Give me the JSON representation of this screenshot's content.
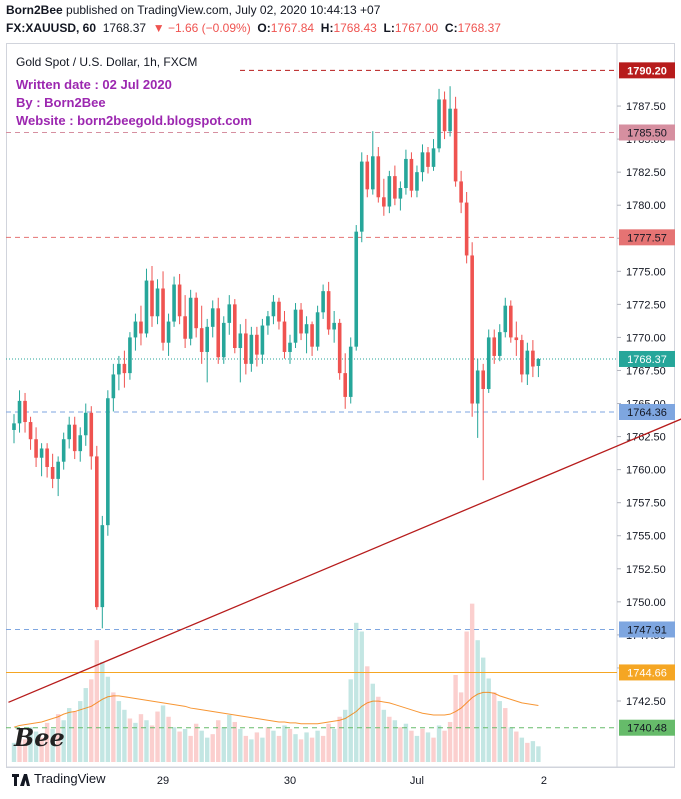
{
  "header": {
    "publisher": "Born2Bee",
    "published_text": "published on TradingView.com, July 02, 2020 10:44:13 +07",
    "symbol": "FX:XAUUSD, 60",
    "last": "1768.37",
    "change": "▼ −1.66 (−0.09%)",
    "o_label": "O:",
    "o_val": "1767.84",
    "h_label": "H:",
    "h_val": "1768.43",
    "l_label": "L:",
    "l_val": "1767.00",
    "c_label": "C:",
    "c_val": "1768.37"
  },
  "pane_title": "Gold Spot / U.S. Dollar, 1h, FXCM",
  "notes": {
    "written": "Written date : 02 Jul 2020",
    "by": "By : Born2Bee",
    "website": "Website : born2beegold.blogspot.com"
  },
  "footer": {
    "tradingview": "TradingView",
    "watermark": "Bee"
  },
  "colors": {
    "up": "#26a69a",
    "down": "#ef5350",
    "trendline": "#b71c1c",
    "note": "#9c27b0",
    "ma": "#f57c00"
  },
  "chart_data": {
    "type": "candlestick",
    "title": "Gold Spot / U.S. Dollar, 1h, FXCM",
    "ylim": [
      1738.5,
      1791.5
    ],
    "y_ticks": [
      1742.5,
      1745,
      1747.5,
      1750,
      1752.5,
      1755,
      1757.5,
      1760,
      1762.5,
      1765,
      1767.5,
      1770,
      1772.5,
      1775,
      1777.5,
      1780,
      1782.5,
      1785,
      1787.5
    ],
    "x_labels": [
      {
        "index": 27,
        "label": "29"
      },
      {
        "index": 50,
        "label": "30"
      },
      {
        "index": 73,
        "label": "Jul"
      },
      {
        "index": 96,
        "label": "2"
      }
    ],
    "levels": [
      {
        "value": 1790.2,
        "label": "1790.20",
        "color": "#b71c1c",
        "style": "dashed"
      },
      {
        "value": 1785.5,
        "label": "1785.50",
        "color": "#d68fa0",
        "style": "dashed"
      },
      {
        "value": 1777.57,
        "label": "1777.57",
        "color": "#e57373",
        "style": "dashed"
      },
      {
        "value": 1768.37,
        "label": "1768.37",
        "color": "#26a69a",
        "style": "dotted"
      },
      {
        "value": 1764.36,
        "label": "1764.36",
        "color": "#7ea6e0",
        "style": "dashed"
      },
      {
        "value": 1747.91,
        "label": "1747.91",
        "color": "#7ea6e0",
        "style": "dashed"
      },
      {
        "value": 1744.66,
        "label": "1744.66",
        "color": "#f5a623",
        "style": "solid"
      },
      {
        "value": 1740.48,
        "label": "1740.48",
        "color": "#66bb6a",
        "style": "dashed"
      }
    ],
    "trendline": {
      "from": {
        "index": -1,
        "value": 1742.4
      },
      "to": {
        "index": 123,
        "value": 1764.2
      }
    },
    "candles": [
      [
        1763.0,
        1764.2,
        1762.0,
        1763.5
      ],
      [
        1763.5,
        1766.0,
        1762.8,
        1765.2
      ],
      [
        1765.2,
        1765.8,
        1762.8,
        1763.6
      ],
      [
        1763.6,
        1764.0,
        1761.5,
        1762.3
      ],
      [
        1762.3,
        1763.2,
        1760.2,
        1760.9
      ],
      [
        1760.9,
        1762.0,
        1759.5,
        1761.6
      ],
      [
        1761.6,
        1762.0,
        1759.4,
        1760.2
      ],
      [
        1760.2,
        1761.2,
        1758.6,
        1759.3
      ],
      [
        1759.3,
        1761.0,
        1758.0,
        1760.6
      ],
      [
        1760.6,
        1762.8,
        1760.0,
        1762.3
      ],
      [
        1762.3,
        1764.0,
        1761.6,
        1763.4
      ],
      [
        1763.4,
        1764.0,
        1760.8,
        1761.4
      ],
      [
        1761.4,
        1763.2,
        1760.6,
        1762.6
      ],
      [
        1762.6,
        1765.0,
        1761.8,
        1764.3
      ],
      [
        1764.3,
        1764.8,
        1760.0,
        1761.0
      ],
      [
        1761.0,
        1761.8,
        1749.4,
        1749.6
      ],
      [
        1749.6,
        1756.5,
        1748.0,
        1755.8
      ],
      [
        1755.8,
        1766.0,
        1755.0,
        1765.4
      ],
      [
        1765.4,
        1768.0,
        1764.4,
        1767.2
      ],
      [
        1767.2,
        1768.6,
        1766.0,
        1768.0
      ],
      [
        1768.0,
        1769.0,
        1766.2,
        1767.3
      ],
      [
        1767.3,
        1770.4,
        1766.8,
        1770.0
      ],
      [
        1770.0,
        1771.8,
        1769.0,
        1771.2
      ],
      [
        1771.2,
        1772.4,
        1769.4,
        1770.3
      ],
      [
        1770.3,
        1775.2,
        1770.0,
        1774.3
      ],
      [
        1774.3,
        1775.4,
        1770.8,
        1771.6
      ],
      [
        1771.6,
        1774.4,
        1771.0,
        1773.7
      ],
      [
        1773.7,
        1775.0,
        1769.0,
        1769.6
      ],
      [
        1769.6,
        1771.8,
        1768.6,
        1771.2
      ],
      [
        1771.2,
        1774.6,
        1770.8,
        1774.0
      ],
      [
        1774.0,
        1774.8,
        1771.0,
        1771.6
      ],
      [
        1771.6,
        1773.2,
        1769.2,
        1769.9
      ],
      [
        1769.9,
        1773.6,
        1769.4,
        1773.0
      ],
      [
        1773.0,
        1773.4,
        1770.0,
        1770.7
      ],
      [
        1770.7,
        1772.4,
        1768.0,
        1768.9
      ],
      [
        1768.9,
        1771.4,
        1766.6,
        1770.8
      ],
      [
        1770.8,
        1772.8,
        1770.0,
        1772.2
      ],
      [
        1772.2,
        1773.0,
        1768.0,
        1768.5
      ],
      [
        1768.5,
        1771.6,
        1768.0,
        1771.1
      ],
      [
        1771.1,
        1773.2,
        1770.2,
        1772.5
      ],
      [
        1772.5,
        1772.9,
        1768.8,
        1769.2
      ],
      [
        1769.2,
        1771.0,
        1766.6,
        1770.3
      ],
      [
        1770.3,
        1771.4,
        1767.2,
        1768.0
      ],
      [
        1768.0,
        1770.8,
        1767.4,
        1770.2
      ],
      [
        1770.2,
        1770.8,
        1767.8,
        1768.7
      ],
      [
        1768.7,
        1771.4,
        1768.0,
        1770.9
      ],
      [
        1770.9,
        1772.0,
        1770.2,
        1771.6
      ],
      [
        1771.6,
        1773.2,
        1771.0,
        1772.7
      ],
      [
        1772.7,
        1773.0,
        1770.6,
        1771.2
      ],
      [
        1771.2,
        1772.0,
        1768.4,
        1768.9
      ],
      [
        1768.9,
        1770.2,
        1768.0,
        1769.6
      ],
      [
        1769.6,
        1772.6,
        1769.2,
        1772.1
      ],
      [
        1772.1,
        1772.6,
        1769.8,
        1770.3
      ],
      [
        1770.3,
        1771.6,
        1768.8,
        1771.0
      ],
      [
        1771.0,
        1771.2,
        1768.6,
        1769.3
      ],
      [
        1769.3,
        1772.4,
        1769.0,
        1771.9
      ],
      [
        1771.9,
        1774.0,
        1771.4,
        1773.5
      ],
      [
        1773.5,
        1774.2,
        1770.2,
        1770.6
      ],
      [
        1770.6,
        1772.0,
        1769.6,
        1771.1
      ],
      [
        1771.1,
        1771.4,
        1766.8,
        1767.3
      ],
      [
        1767.3,
        1768.8,
        1764.6,
        1765.5
      ],
      [
        1765.5,
        1770.0,
        1765.0,
        1769.3
      ],
      [
        1769.3,
        1778.5,
        1769.0,
        1778.0
      ],
      [
        1778.0,
        1784.0,
        1777.2,
        1783.3
      ],
      [
        1783.3,
        1783.8,
        1780.6,
        1781.2
      ],
      [
        1781.2,
        1785.6,
        1780.8,
        1783.7
      ],
      [
        1783.7,
        1784.4,
        1780.2,
        1780.6
      ],
      [
        1780.6,
        1782.0,
        1779.2,
        1779.9
      ],
      [
        1779.9,
        1782.6,
        1779.4,
        1782.2
      ],
      [
        1782.2,
        1783.0,
        1780.0,
        1780.5
      ],
      [
        1780.5,
        1781.8,
        1779.6,
        1781.3
      ],
      [
        1781.3,
        1784.2,
        1780.8,
        1783.5
      ],
      [
        1783.5,
        1784.0,
        1780.6,
        1781.1
      ],
      [
        1781.1,
        1783.0,
        1780.6,
        1782.5
      ],
      [
        1782.5,
        1784.6,
        1781.8,
        1784.0
      ],
      [
        1784.0,
        1784.4,
        1782.4,
        1782.9
      ],
      [
        1782.9,
        1785.0,
        1782.6,
        1784.3
      ],
      [
        1784.3,
        1788.8,
        1784.0,
        1788.0
      ],
      [
        1788.0,
        1788.6,
        1785.0,
        1785.6
      ],
      [
        1785.6,
        1789.0,
        1785.2,
        1787.3
      ],
      [
        1787.3,
        1788.2,
        1781.4,
        1781.8
      ],
      [
        1781.8,
        1782.6,
        1779.4,
        1780.2
      ],
      [
        1780.2,
        1781.0,
        1775.6,
        1776.2
      ],
      [
        1776.2,
        1777.2,
        1764.0,
        1765.0
      ],
      [
        1765.0,
        1768.4,
        1762.4,
        1767.5
      ],
      [
        1767.5,
        1768.0,
        1759.2,
        1766.1
      ],
      [
        1766.1,
        1770.6,
        1765.8,
        1770.0
      ],
      [
        1770.0,
        1770.6,
        1768.0,
        1768.6
      ],
      [
        1768.6,
        1771.0,
        1768.2,
        1770.4
      ],
      [
        1770.4,
        1773.0,
        1770.0,
        1772.4
      ],
      [
        1772.4,
        1772.8,
        1769.6,
        1770.0
      ],
      [
        1770.0,
        1771.2,
        1768.6,
        1769.8
      ],
      [
        1769.8,
        1770.2,
        1766.6,
        1767.2
      ],
      [
        1767.2,
        1769.6,
        1766.4,
        1769.0
      ],
      [
        1769.0,
        1769.8,
        1767.0,
        1767.8
      ],
      [
        1767.84,
        1768.43,
        1767.0,
        1768.37
      ]
    ],
    "volume": [
      [
        22,
        "up"
      ],
      [
        30,
        "down"
      ],
      [
        26,
        "down"
      ],
      [
        40,
        "up"
      ],
      [
        35,
        "up"
      ],
      [
        28,
        "down"
      ],
      [
        45,
        "down"
      ],
      [
        38,
        "up"
      ],
      [
        55,
        "down"
      ],
      [
        48,
        "up"
      ],
      [
        62,
        "up"
      ],
      [
        58,
        "down"
      ],
      [
        70,
        "up"
      ],
      [
        85,
        "up"
      ],
      [
        95,
        "down"
      ],
      [
        140,
        "down"
      ],
      [
        115,
        "up"
      ],
      [
        98,
        "up"
      ],
      [
        80,
        "down"
      ],
      [
        70,
        "up"
      ],
      [
        60,
        "up"
      ],
      [
        50,
        "down"
      ],
      [
        45,
        "up"
      ],
      [
        55,
        "down"
      ],
      [
        48,
        "up"
      ],
      [
        42,
        "down"
      ],
      [
        58,
        "down"
      ],
      [
        65,
        "up"
      ],
      [
        52,
        "down"
      ],
      [
        40,
        "up"
      ],
      [
        35,
        "down"
      ],
      [
        38,
        "up"
      ],
      [
        30,
        "down"
      ],
      [
        44,
        "down"
      ],
      [
        36,
        "up"
      ],
      [
        28,
        "up"
      ],
      [
        32,
        "down"
      ],
      [
        48,
        "down"
      ],
      [
        40,
        "up"
      ],
      [
        54,
        "up"
      ],
      [
        46,
        "down"
      ],
      [
        38,
        "up"
      ],
      [
        30,
        "down"
      ],
      [
        26,
        "up"
      ],
      [
        34,
        "down"
      ],
      [
        28,
        "up"
      ],
      [
        40,
        "down"
      ],
      [
        36,
        "up"
      ],
      [
        30,
        "down"
      ],
      [
        42,
        "up"
      ],
      [
        38,
        "down"
      ],
      [
        32,
        "up"
      ],
      [
        26,
        "down"
      ],
      [
        34,
        "up"
      ],
      [
        28,
        "down"
      ],
      [
        36,
        "up"
      ],
      [
        30,
        "down"
      ],
      [
        44,
        "down"
      ],
      [
        38,
        "up"
      ],
      [
        52,
        "down"
      ],
      [
        60,
        "up"
      ],
      [
        95,
        "up"
      ],
      [
        160,
        "up"
      ],
      [
        150,
        "up"
      ],
      [
        110,
        "down"
      ],
      [
        90,
        "up"
      ],
      [
        75,
        "down"
      ],
      [
        60,
        "up"
      ],
      [
        52,
        "down"
      ],
      [
        48,
        "up"
      ],
      [
        40,
        "down"
      ],
      [
        44,
        "up"
      ],
      [
        36,
        "down"
      ],
      [
        30,
        "up"
      ],
      [
        38,
        "down"
      ],
      [
        34,
        "up"
      ],
      [
        28,
        "down"
      ],
      [
        42,
        "up"
      ],
      [
        36,
        "down"
      ],
      [
        46,
        "down"
      ],
      [
        100,
        "down"
      ],
      [
        80,
        "down"
      ],
      [
        150,
        "down"
      ],
      [
        182,
        "down"
      ],
      [
        140,
        "up"
      ],
      [
        120,
        "up"
      ],
      [
        96,
        "up"
      ],
      [
        80,
        "down"
      ],
      [
        70,
        "up"
      ],
      [
        62,
        "down"
      ],
      [
        40,
        "up"
      ],
      [
        35,
        "down"
      ],
      [
        28,
        "up"
      ],
      [
        22,
        "down"
      ],
      [
        24,
        "up"
      ],
      [
        18,
        "up"
      ]
    ],
    "volume_ma": [
      40,
      42,
      43,
      44,
      45,
      46,
      48,
      50,
      52,
      55,
      57,
      58,
      60,
      62,
      64,
      68,
      72,
      75,
      76,
      76,
      75,
      74,
      73,
      72,
      71,
      70,
      69,
      68,
      67,
      66,
      65,
      64,
      62,
      61,
      60,
      59,
      58,
      57,
      56,
      55,
      54,
      53,
      52,
      51,
      50,
      49,
      48,
      47,
      46,
      46,
      45,
      45,
      44,
      44,
      44,
      44,
      45,
      46,
      47,
      48,
      50,
      54,
      58,
      64,
      68,
      70,
      70,
      69,
      68,
      66,
      64,
      62,
      60,
      58,
      56,
      55,
      54,
      54,
      54,
      55,
      58,
      62,
      68,
      74,
      78,
      80,
      80,
      79,
      76,
      74,
      72,
      70,
      68,
      67,
      66,
      65
    ]
  }
}
